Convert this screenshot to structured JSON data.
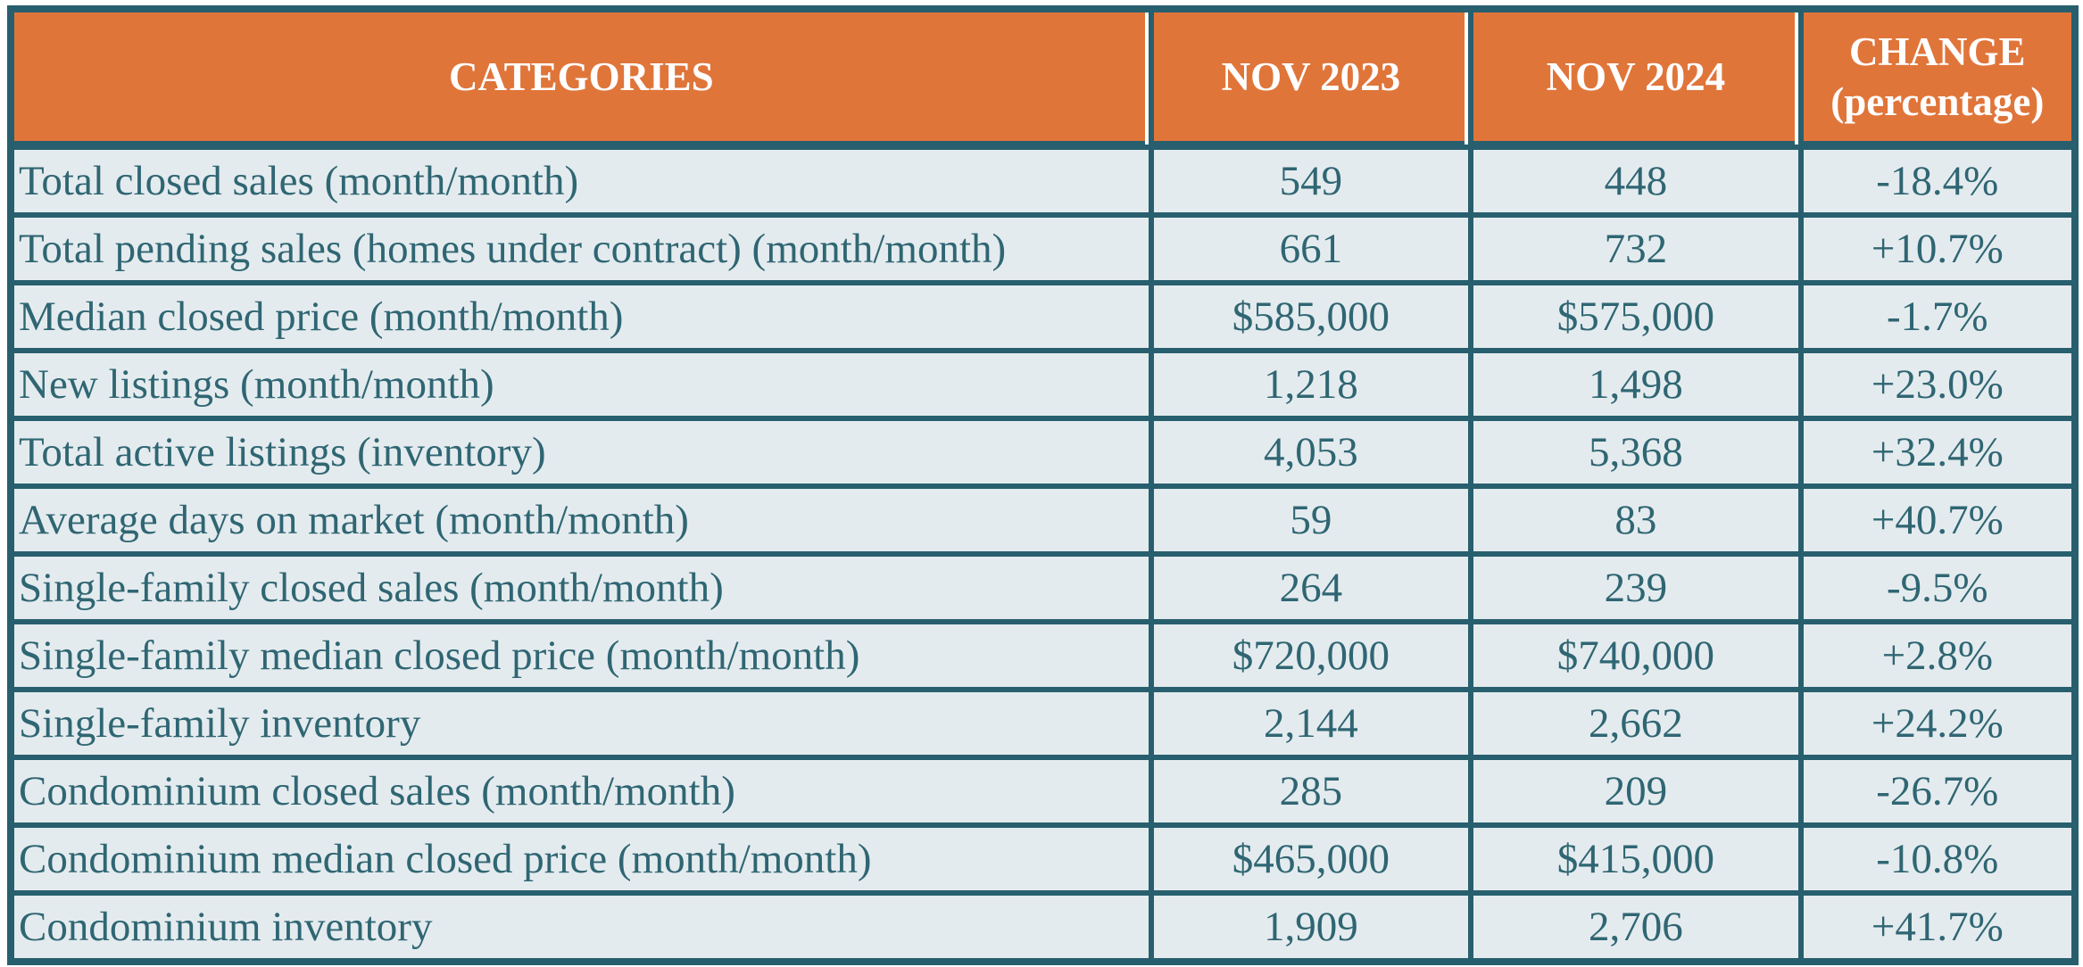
{
  "chart_data": {
    "type": "table",
    "columns": [
      "CATEGORIES",
      "NOV 2023",
      "NOV 2024",
      "CHANGE (percentage)"
    ],
    "rows": [
      [
        "Total closed sales (month/month)",
        "549",
        "448",
        "-18.4%"
      ],
      [
        "Total pending sales (homes under contract) (month/month)",
        "661",
        "732",
        "+10.7%"
      ],
      [
        "Median closed price (month/month)",
        "$585,000",
        "$575,000",
        "-1.7%"
      ],
      [
        "New listings (month/month)",
        "1,218",
        "1,498",
        "+23.0%"
      ],
      [
        "Total active listings (inventory)",
        "4,053",
        "5,368",
        "+32.4%"
      ],
      [
        "Average days on market (month/month)",
        "59",
        "83",
        "+40.7%"
      ],
      [
        "Single-family closed sales (month/month)",
        "264",
        "239",
        "-9.5%"
      ],
      [
        "Single-family median closed price (month/month)",
        "$720,000",
        "$740,000",
        "+2.8%"
      ],
      [
        "Single-family inventory",
        "2,144",
        "2,662",
        "+24.2%"
      ],
      [
        "Condominium closed sales (month/month)",
        "285",
        "209",
        "-26.7%"
      ],
      [
        "Condominium median closed price (month/month)",
        "$465,000",
        "$415,000",
        "-10.8%"
      ],
      [
        "Condominium inventory",
        "1,909",
        "2,706",
        "+41.7%"
      ]
    ],
    "layout": {
      "header_position": "top",
      "grid": "on",
      "category_alignment": "left",
      "value_alignment": "center"
    },
    "colors": {
      "header_background": "#E0753A",
      "header_text": "#FFFFFF",
      "grid_border": "#285F6E",
      "row_background": "#E4EBEE",
      "body_text": "#2F6673",
      "header_separator_line": "#FFFFFF"
    }
  }
}
